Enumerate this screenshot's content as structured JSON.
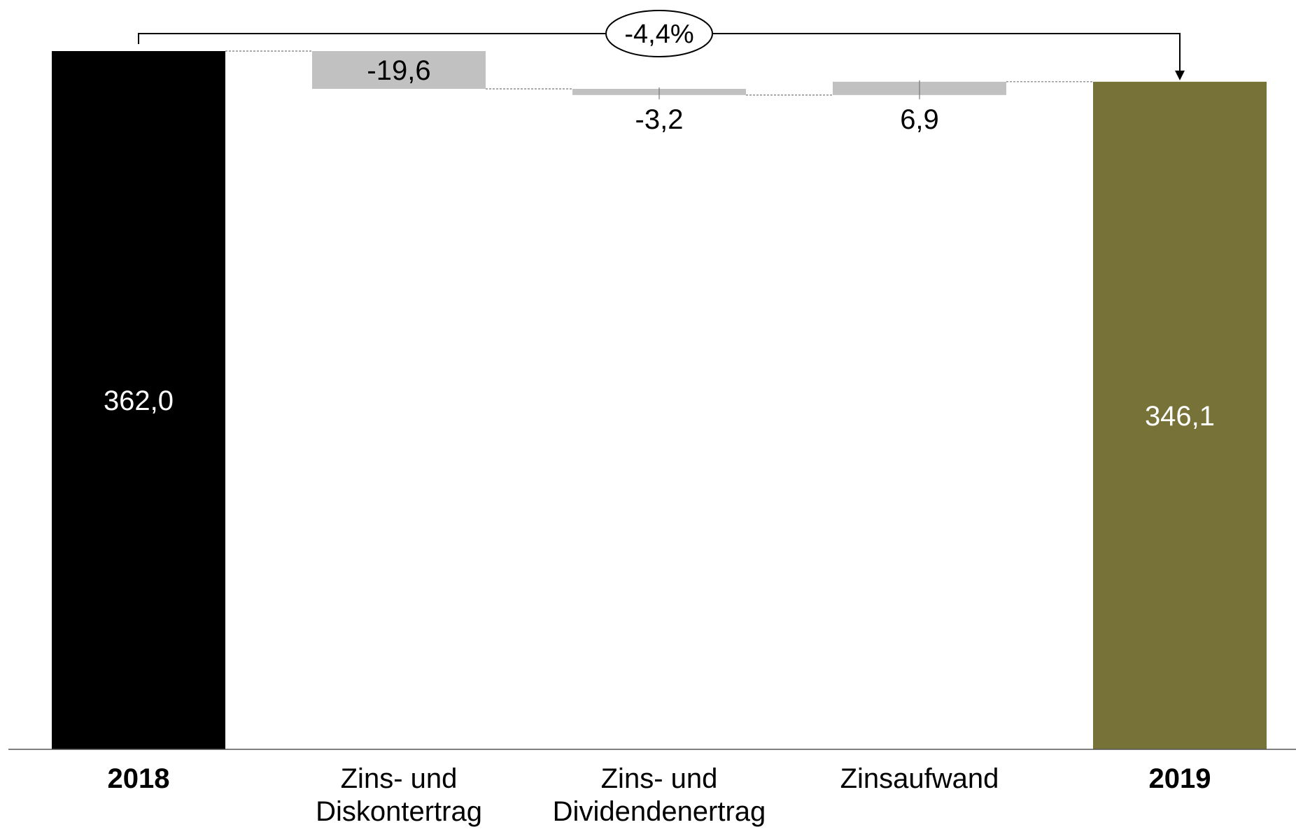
{
  "chart_data": {
    "type": "waterfall",
    "title": "",
    "xlabel": "",
    "ylabel": "",
    "ylim": [
      0,
      362
    ],
    "grid": false,
    "categories": [
      {
        "label_lines": [
          "2018"
        ],
        "bold": true
      },
      {
        "label_lines": [
          "Zins- und",
          "Diskontertrag"
        ],
        "bold": false
      },
      {
        "label_lines": [
          "Zins- und",
          "Dividendenertrag"
        ],
        "bold": false
      },
      {
        "label_lines": [
          "Zinsaufwand"
        ],
        "bold": false
      },
      {
        "label_lines": [
          "2019"
        ],
        "bold": true
      }
    ],
    "bars": [
      {
        "kind": "total",
        "value": 362.0,
        "label": "362,0",
        "color": "#000000",
        "label_color": "#ffffff"
      },
      {
        "kind": "delta",
        "value": -19.6,
        "label": "-19,6",
        "color": "#c0c1c0",
        "label_color": "#000000"
      },
      {
        "kind": "delta",
        "value": -3.2,
        "label": "-3,2",
        "color": "#c0c1c0",
        "label_color": "#000000"
      },
      {
        "kind": "delta",
        "value": 6.9,
        "label": "6,9",
        "color": "#c0c1c0",
        "label_color": "#000000"
      },
      {
        "kind": "total",
        "value": 346.1,
        "label": "346,1",
        "color": "#777237",
        "label_color": "#ffffff"
      }
    ],
    "change_annotation": {
      "from_index": 0,
      "to_index": 4,
      "label": "-4,4%"
    }
  }
}
